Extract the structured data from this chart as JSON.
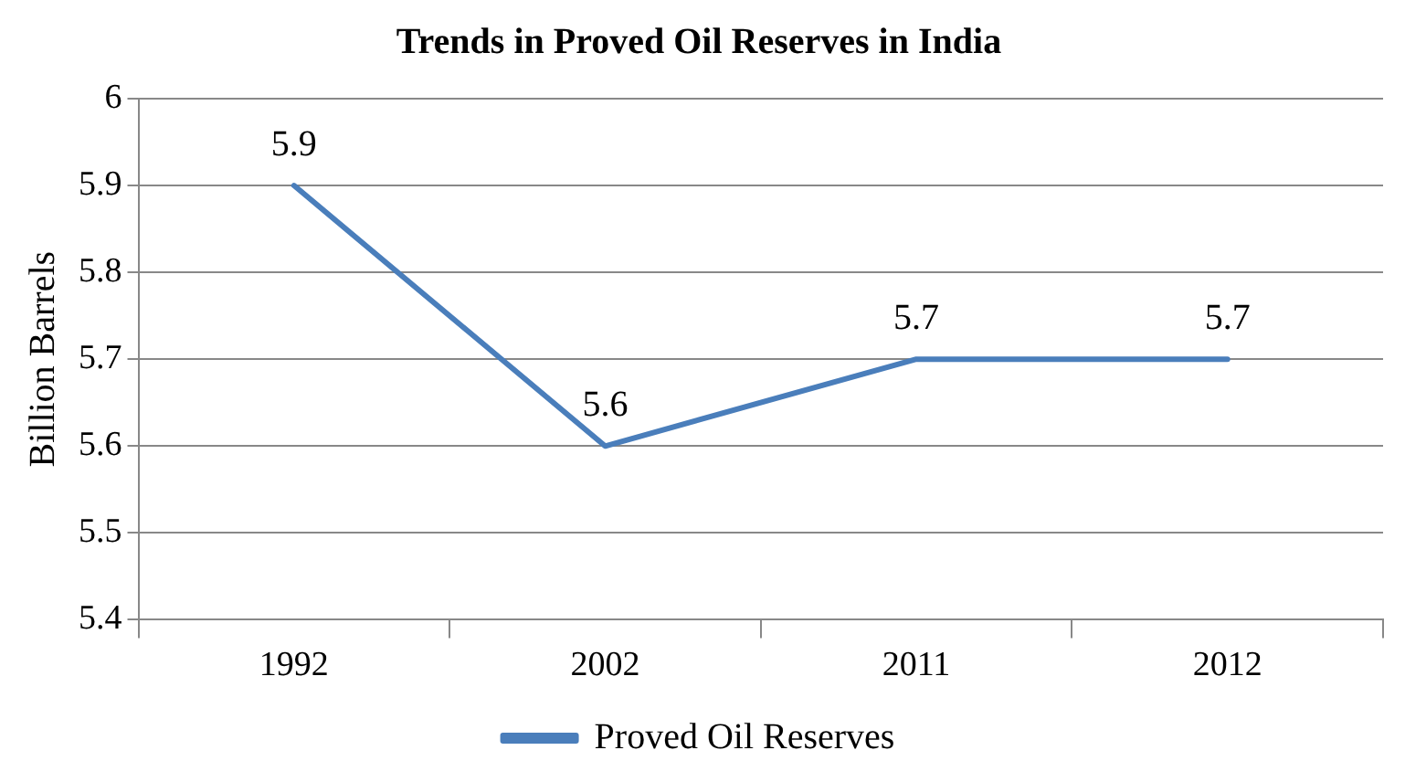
{
  "chart_data": {
    "type": "line",
    "title": "Trends in Proved Oil Reserves in India",
    "ylabel": "Billion Barrels",
    "categories": [
      "1992",
      "2002",
      "2011",
      "2012"
    ],
    "series": [
      {
        "name": "Proved Oil Reserves",
        "color": "#4a7ebb",
        "values": [
          5.9,
          5.6,
          5.7,
          5.7
        ]
      }
    ],
    "ylim": [
      5.4,
      6
    ],
    "yticks": [
      5.4,
      5.5,
      5.6,
      5.7,
      5.8,
      5.9,
      6
    ],
    "grid": "y",
    "legend": "bottom",
    "marker": "none",
    "line_style": "solid",
    "data_labels": true
  }
}
